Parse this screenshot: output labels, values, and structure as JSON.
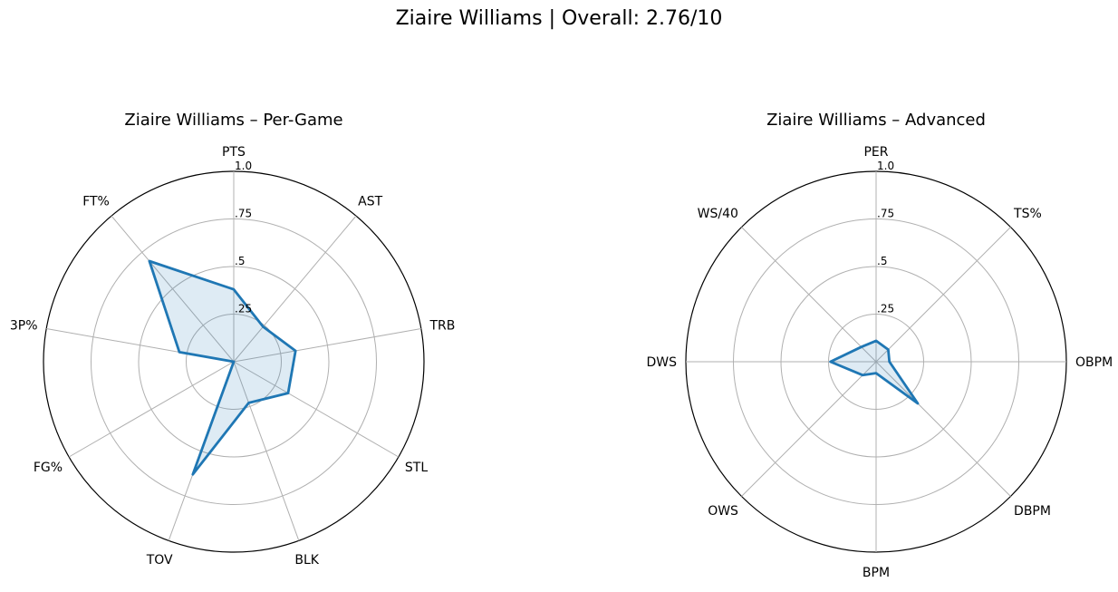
{
  "title": "Ziaire Williams | Overall: 2.76/10",
  "chart_data": [
    {
      "type": "radar",
      "title": "Ziaire Williams – Per-Game",
      "categories": [
        "PTS",
        "AST",
        "TRB",
        "STL",
        "BLK",
        "TOV",
        "FG%",
        "3P%",
        "FT%"
      ],
      "values": [
        0.38,
        0.24,
        0.33,
        0.33,
        0.23,
        0.63,
        0.0,
        0.29,
        0.69
      ],
      "rlim": [
        0,
        1.0
      ],
      "rticks": [
        0.25,
        0.5,
        0.75,
        1.0
      ],
      "rtick_labels": [
        ".25",
        ".5",
        ".75",
        "1.0"
      ],
      "grid": true,
      "line_color": "#1f77b4",
      "fill_color": "#1f77b4"
    },
    {
      "type": "radar",
      "title": "Ziaire Williams – Advanced",
      "categories": [
        "PER",
        "TS%",
        "OBPM",
        "DBPM",
        "BPM",
        "OWS",
        "DWS",
        "WS/40"
      ],
      "values": [
        0.11,
        0.09,
        0.07,
        0.31,
        0.06,
        0.1,
        0.24,
        0.11
      ],
      "rlim": [
        0,
        1.0
      ],
      "rticks": [
        0.25,
        0.5,
        0.75,
        1.0
      ],
      "rtick_labels": [
        ".25",
        ".5",
        ".75",
        "1.0"
      ],
      "grid": true,
      "line_color": "#1f77b4",
      "fill_color": "#1f77b4"
    }
  ]
}
